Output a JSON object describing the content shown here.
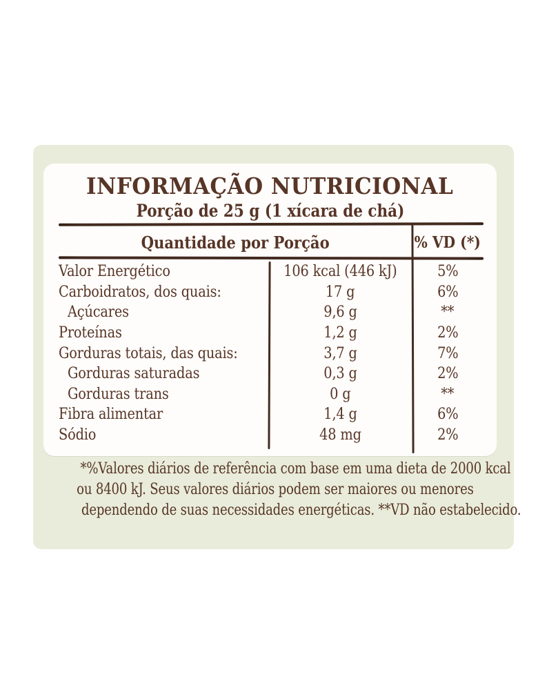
{
  "colors": {
    "page_bg": "#ffffff",
    "card_bg": "#e9ecda",
    "panel_bg": "#fefdfb",
    "text": "#573527",
    "line": "#442b20"
  },
  "header": {
    "title": "INFORMAÇÃO NUTRICIONAL",
    "serving": "Porção de 25 g (1 xícara de chá)"
  },
  "table": {
    "quantity_header": "Quantidade por Porção",
    "vd_header": "% VD (*)",
    "rows": [
      {
        "name": "Valor Energético",
        "value": "106 kcal (446 kJ)",
        "vd": "5%"
      },
      {
        "name": "Carboidratos, dos quais:",
        "value": "17 g",
        "vd": "6%"
      },
      {
        "name": "Açúcares",
        "value": "9,6 g",
        "vd": "**"
      },
      {
        "name": "Proteínas",
        "value": "1,2 g",
        "vd": "2%"
      },
      {
        "name": "Gorduras totais, das quais:",
        "value": "3,7 g",
        "vd": "7%"
      },
      {
        "name": "Gorduras saturadas",
        "value": "0,3 g",
        "vd": "2%"
      },
      {
        "name": "Gorduras trans",
        "value": "0 g",
        "vd": "**"
      },
      {
        "name": "Fibra alimentar",
        "value": "1,4 g",
        "vd": "6%"
      },
      {
        "name": "Sódio",
        "value": "48 mg",
        "vd": "2%"
      }
    ]
  },
  "footnote": {
    "line1": "*%Valores diários de referência com base em uma dieta de 2000 kcal",
    "line2": "ou 8400 kJ. Seus valores diários podem ser maiores ou menores",
    "line3": "dependendo de suas necessidades energéticas. **VD não estabelecido."
  }
}
